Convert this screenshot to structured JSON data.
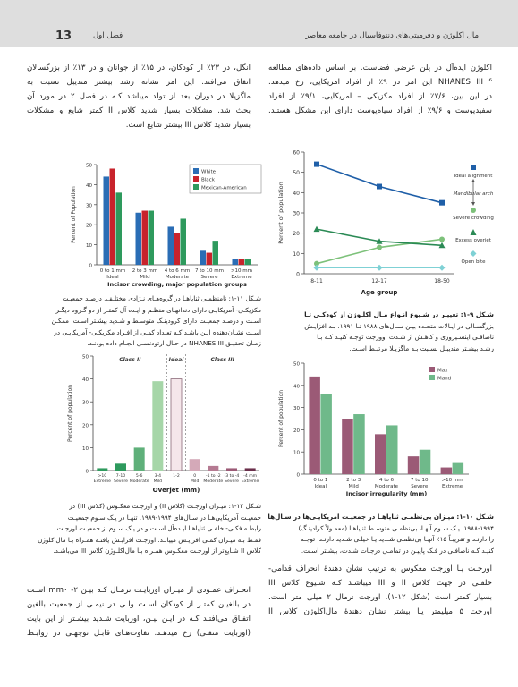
{
  "header": {
    "page_number": "13",
    "chapter": "فصل اول",
    "running_title": "مال اکلوژن و دفرمیتی‌های دنتوفاسیال در جامعه معاصر"
  },
  "col_right_top": [
    "اکلوژن ایده‌آل در پلن عرضی فضاست. بر اساس داده‌های مطالعه",
    "NHANES III ⁶ این امر در ۹٪ از افراد امریکایی، رخ میدهد.",
    "در این بین، ۷/۶٪ از افراد مکزیکی – امریکایی، ۹/۱٪ از افراد",
    "سفیدپوست و ۹/۶٪ از افراد سیاه‌پوست دارای این مشکل هستند."
  ],
  "col_left_top": [
    "انگل، در ۲۳٪ از کودکان، در ۱۵٪ از جوانان و در ۱۳٪ از بزرگسالان",
    "اتفاق می‌افتد. این امر نشانه رشد بیشتر مندیبل نسبت به",
    "ماگزیلا در دوران بعد از تولد میباشد کـه در فصل ۲ در مورد آن",
    "بحث شد. مشکلات بسیار شدید کلاس II کمتر شایع و مشکلات",
    "بسیار شدید کلاس III بیشتر شایع است."
  ],
  "captions": {
    "fig9": [
      "شـکل ۹-۱: تغییـر در شـیوع انـواع مـال اکلـوژن از کودکـی تـا",
      "بزرگسـالی در ایـالات متحـده بیـن سـال‌های ۱۹۸۸ تـا ۱۹۹۱. بـه افزایـش",
      "ناصافـی اینسـیزوری و کاهـش از شـدت اوورجت توجـه کنیـد کـه بـا",
      "رشـد بیشـتر مندیبـل نسـبت بـه ماگزیـلا مرتبـط اسـت."
    ],
    "fig11": [
      "شـکل ۱۱-۱: نامنظمـی ثنایاهـا در گروه‌هـای نـژادی مختلـف. درصـد جمعیـت",
      "مکزیکـی- آمریکایـی دارای دندانهـای منظـم و ایـده آل کمتـر از دو گـروه دیگـر",
      "اسـت و درصـد جمعیـت دارای کرودینـگ متوسـط و شـدید بیشـتر اسـت. ممکـن",
      "اسـت نشـان‌دهنده ایـن باشـد کـه تعـداد کمـی از افـراد مکزیکـی- آمریکایـی در",
      "زمـان تحقیـق NHANES III در حـال ارتودنسـی انجـام داده بودنـد."
    ],
    "fig10": [
      "شـکل ۱۰-۱: میـزان بی‌نظمـی ثنایاهـا در جمعیـت آمریکایـی‌ها در سـال‌های",
      "۱۹۸۸-۱۹۹۴. یـک سـوم آنهـا، بی‌نظمـی متوسـط ثنایاهـا (معمـولاً کرادینـگ)",
      "را دارنـد و تقریبـاً ۱۵٪ آنهـا بی‌نظمـی شـدید یـا خیلـی شـدید دارنـد. توجـه",
      "کنیـد کـه ناصافـی در فـک پاییـن در تمامـی درجـات شـدت، بیشـتر اسـت."
    ],
    "fig12": [
      "شـکل ۱۲-۱: میـزان اورجـت (کلاس II) و اورجـت معکـوس (کلاس III) در",
      "جمعیـت آمریکایی‌هـا در سـال‌های ۱۹۹۴-۱۹۸۹. تنهـا در یـک سـوم جمعیـت",
      "رابطـه فکـی- خلفـی ثنایاهـا ایـده‌آل اسـت و در یـک سـوم از جمعیـت اورجـت",
      "فقـط بـه میـزان کمـی افزایـش مییابـد. اورجـت افزایـش یافتـه همـراه بـا مال‌اکلوژن",
      "کلاس II شـایع‌تر از اورجـت معکـوس همـراه بـا مال‌اکلـوژن کلاس III می‌باشـد."
    ]
  },
  "col_right_bottom": [
    "اورجـت یـا اورجت معکوس به ترتیب نشان دهندۀ انحراف قدامی-",
    "خلفـی در جهت کلاس II و III میباشـد کـه شـیوع کلاس III",
    "بسیار کمتر است (شکل ۱۲-۱). اورجت نرمال ۲ میلی متر است.",
    "اورجت ۵ میلیمتر یـا بیشتر نشان دهندۀ مال‌اکلوژن کلاس II"
  ],
  "col_left_bottom": [
    "انحـراف عمـودی از میـزان اوربایـت نرمـال کـه بیـن ۲- mm۰ اسـت",
    "در بالغیـن کمتـر از کودکان اسـت ولـی در نیمـی از جمعیت بالغین",
    "اتفـاق می‌افتـد کـه در ایـن بیـن، اوربایت شـدید بیشـتر از این بایت",
    "(اوربایت منفـی) رخ میدهـد. تفاوت‌هـای قابـل توجهـی در روابـط"
  ],
  "chart_data": [
    {
      "id": "fig9",
      "type": "line",
      "xlabel": "Age group",
      "ylabel": "Percent of population",
      "ylim": [
        0,
        60
      ],
      "yticks": [
        0,
        10,
        20,
        30,
        40,
        50,
        60
      ],
      "categories": [
        "8-11",
        "12-17",
        "18-50"
      ],
      "series": [
        {
          "name": "Ideal alignment",
          "color": "#1f5fa8",
          "marker": "square",
          "values": [
            54,
            43,
            35
          ]
        },
        {
          "name": "Severe crowding",
          "color": "#7dc17a",
          "marker": "circle",
          "values": [
            5,
            13,
            17
          ]
        },
        {
          "name": "Excess overjet",
          "color": "#2b8a55",
          "marker": "triangle",
          "values": [
            22,
            16,
            14
          ]
        },
        {
          "name": "Open bite",
          "color": "#7fd1d5",
          "marker": "diamond",
          "values": [
            3,
            3,
            3
          ]
        }
      ],
      "annotation": "Mandibular arch",
      "grid": false
    },
    {
      "id": "fig11",
      "type": "bar",
      "xlabel": "Incisor crowding, major population groups",
      "ylabel": "Percent of Population",
      "ylim": [
        0,
        50
      ],
      "yticks": [
        0,
        10,
        20,
        30,
        40,
        50
      ],
      "categories": [
        "0 to 1 mm",
        "2 to 3 mm",
        "4 to 6 mm",
        "7 to 10 mm",
        ">10 mm"
      ],
      "sublabels": [
        "Ideal",
        "Mild",
        "Moderate",
        "Severe",
        "Extreme"
      ],
      "series": [
        {
          "name": "White",
          "color": "#2a6db5",
          "values": [
            44,
            26,
            19,
            7,
            3
          ]
        },
        {
          "name": "Black",
          "color": "#c8232c",
          "values": [
            48,
            27,
            16,
            6,
            3
          ]
        },
        {
          "name": "Mexican-American",
          "color": "#2e9a5d",
          "values": [
            36,
            27,
            23,
            12,
            3
          ]
        }
      ],
      "legend": "top-right",
      "grid": false
    },
    {
      "id": "fig10",
      "type": "bar",
      "xlabel": "Incisor irregularity (mm)",
      "ylabel": "Percent of population",
      "ylim": [
        0,
        50
      ],
      "yticks": [
        0,
        10,
        20,
        30,
        40,
        50
      ],
      "categories": [
        "0 to 1",
        "2 to 3",
        "4 to 6",
        "7 to 10",
        ">10 mm"
      ],
      "sublabels": [
        "Ideal",
        "Mild",
        "Moderate",
        "Severe",
        "Extreme"
      ],
      "series": [
        {
          "name": "Max",
          "color": "#9b5a76",
          "values": [
            44,
            25,
            18,
            8,
            3
          ]
        },
        {
          "name": "Mand",
          "color": "#6fb98a",
          "values": [
            36,
            27,
            22,
            11,
            5
          ]
        }
      ],
      "legend": "top-right",
      "grid": false
    },
    {
      "id": "fig12",
      "type": "bar",
      "xlabel": "Overjet (mm)",
      "ylabel": "Percent of population",
      "ylim": [
        0,
        50
      ],
      "yticks": [
        0,
        10,
        20,
        30,
        40,
        50
      ],
      "categories": [
        ">10",
        "7-10",
        "5-6",
        "3-4",
        "1-2",
        "0",
        "-1 to -2",
        "-3 to -4",
        "-4 mm"
      ],
      "sublabels": [
        "Extreme",
        "Severe",
        "Moderate",
        "Mild",
        "",
        "Mild",
        "Moderate",
        "Severe",
        "Extreme"
      ],
      "values": [
        1,
        3,
        10,
        39,
        40,
        5,
        2,
        1,
        1
      ],
      "colors": [
        "#2e9a5d",
        "#2e9a5d",
        "#5fb07a",
        "#a6d6a8",
        "#f5e6ea",
        "#d4a9b8",
        "#b57a92",
        "#9b5a76",
        "#6a2f4b"
      ],
      "region_labels": [
        "Class II",
        "Ideal",
        "Class III"
      ],
      "grid": false
    }
  ]
}
